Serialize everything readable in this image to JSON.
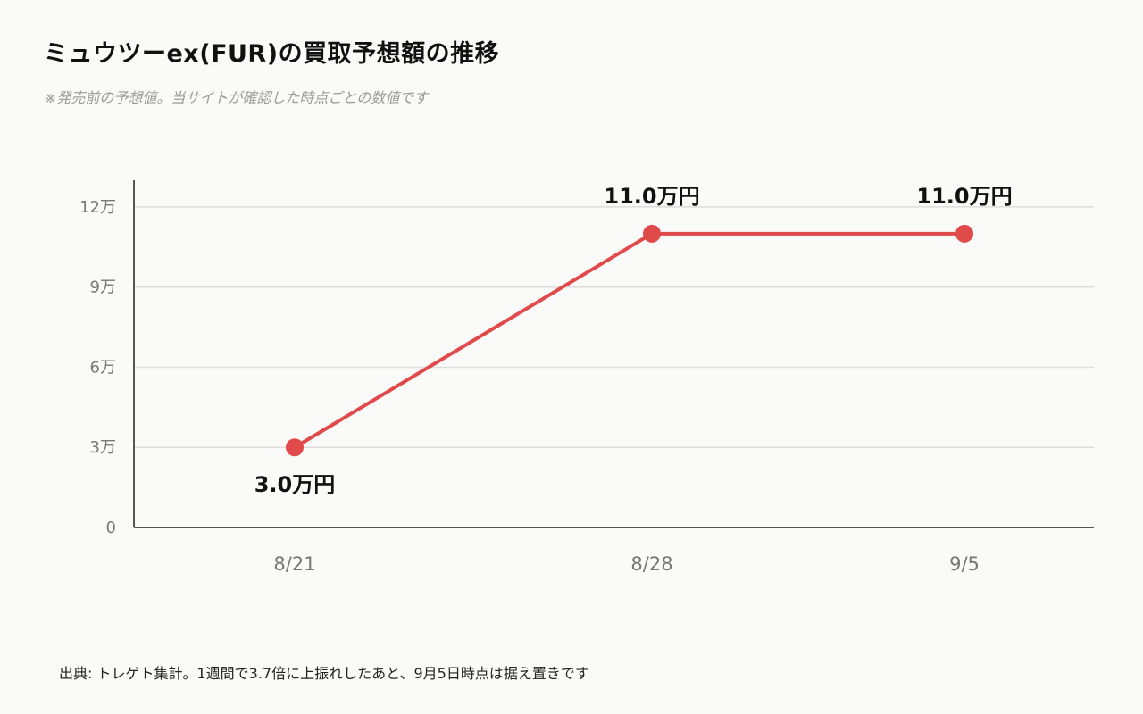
{
  "header": {
    "title": "ミュウツーex(FUR)の買取予想額の推移",
    "subtitle": "※発売前の予想値。当サイトが確認した時点ごとの数値です"
  },
  "footer": {
    "source": "出典: トレゲト集計。1週間で3.7倍に上振れしたあと、9月5日時点は据え置きです"
  },
  "chart_data": {
    "type": "line",
    "title": "ミュウツーex(FUR)の買取予想額の推移",
    "subtitle": "※発売前の予想値。当サイトが確認した時点ごとの数値です",
    "xlabel": "",
    "ylabel": "",
    "categories": [
      "8/21",
      "8/28",
      "9/5"
    ],
    "values": [
      3.0,
      11.0,
      11.0
    ],
    "value_unit": "万円",
    "data_labels": [
      "3.0万円",
      "11.0万円",
      "11.0万円"
    ],
    "ylim": [
      0,
      13
    ],
    "yticks": [
      0,
      3,
      6,
      9,
      12
    ],
    "ytick_labels": [
      "0",
      "3万",
      "6万",
      "9万",
      "12万"
    ],
    "grid": true,
    "legend": "none",
    "line_color": "#e04a4a",
    "axis_color": "#555555",
    "grid_color": "#dddddd"
  }
}
